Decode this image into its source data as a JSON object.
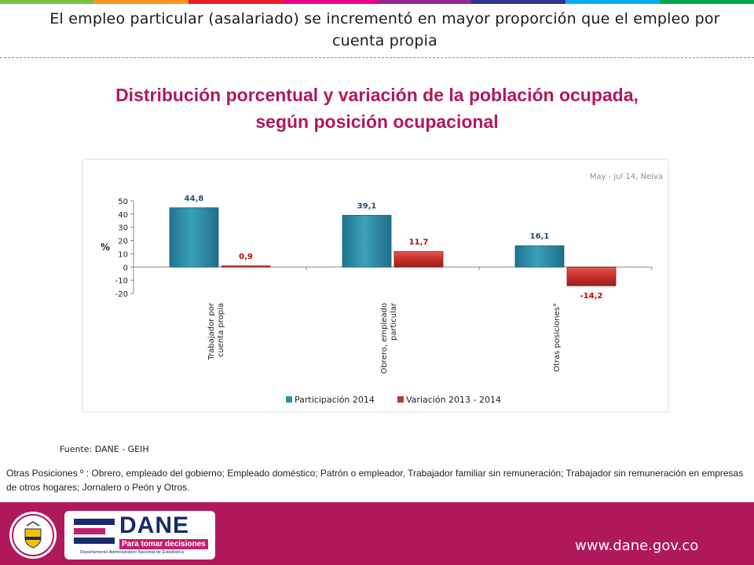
{
  "slide_title": "El empleo particular (asalariado) se incrementó en mayor proporción que el empleo por cuenta propia",
  "colors": {
    "brand": "#b0185c",
    "bar_participacion": "#2f8fa8",
    "bar_variacion": "#c6302c",
    "label_participacion": "#1f4e6e",
    "label_variacion": "#c00000",
    "topbar": [
      "#7ac143",
      "#f7941d",
      "#ed1c24",
      "#ec008c",
      "#92278f",
      "#2e3192",
      "#00aeef",
      "#00a651"
    ]
  },
  "chart_data": {
    "type": "bar",
    "title": "Distribución porcentual y variación de la población ocupada, según posición ocupacional",
    "title_lines": [
      "Distribución porcentual y variación de la población ocupada,",
      "según posición ocupacional"
    ],
    "annotation": "May - jul 14, Neiva",
    "ylabel": "%",
    "xlabel": "",
    "ylim": [
      -20,
      50
    ],
    "yticks": [
      50,
      40,
      30,
      20,
      10,
      0,
      -10,
      -20
    ],
    "categories": [
      [
        "Trabajador por",
        "cuenta propia"
      ],
      [
        "Obrero, empleado",
        "particular"
      ],
      [
        "Otras posiciones°"
      ]
    ],
    "series": [
      {
        "name": "Participación 2014",
        "values": [
          44.8,
          39.1,
          16.1
        ],
        "labels": [
          "44,8",
          "39,1",
          "16,1"
        ]
      },
      {
        "name": "Variación 2013 - 2014",
        "values": [
          0.9,
          11.7,
          -14.2
        ],
        "labels": [
          "0,9",
          "11,7",
          "-14,2"
        ]
      }
    ],
    "legend_position": "bottom",
    "grid": false
  },
  "source": "Fuente: DANE - GEIH",
  "note": "Otras Posiciones º :  Obrero, empleado del gobierno; Empleado doméstico; Patrón o empleador, Trabajador familiar sin remuneración; Trabajador sin remuneración en empresas de otros hogares; Jornalero o Peón  y Otros.",
  "footer": {
    "logo_name": "DANE",
    "logo_tagline": "Para tomar decisiones",
    "logo_subtitle": "Departamento Administrativo Nacional de Estadística",
    "url": "www.dane.gov.co"
  }
}
